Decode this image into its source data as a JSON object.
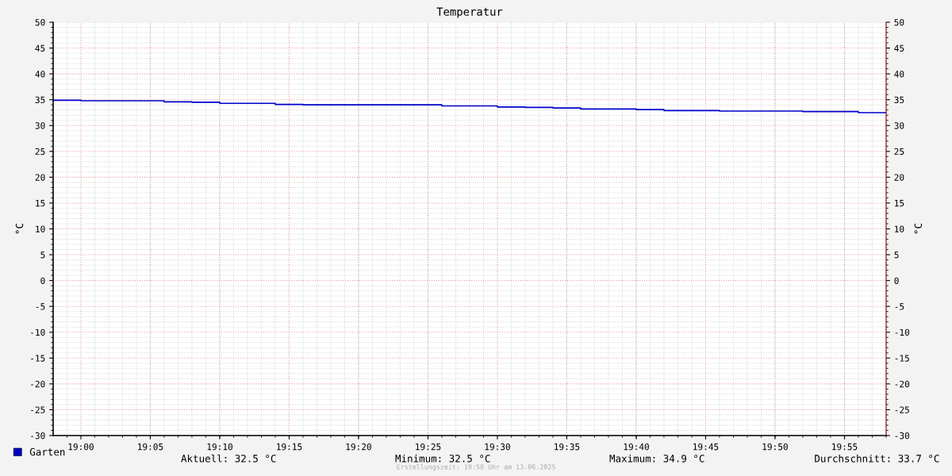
{
  "chart_data": {
    "type": "step",
    "title": "Temperatur",
    "ylabel": "°C",
    "y2label": "°C",
    "x": [
      18.9667,
      19.0,
      19.1,
      19.1333,
      19.1667,
      19.2333,
      19.2667,
      19.4333,
      19.5,
      19.5333,
      19.5667,
      19.6,
      19.6667,
      19.7,
      19.7667,
      19.8667,
      19.9333,
      19.9667
    ],
    "series": [
      {
        "name": "Garten",
        "color": "#0000cc",
        "values": [
          34.9,
          34.8,
          34.6,
          34.5,
          34.3,
          34.1,
          34.0,
          33.8,
          33.6,
          33.5,
          33.4,
          33.2,
          33.1,
          32.9,
          32.8,
          32.7,
          32.5,
          32.5
        ]
      }
    ],
    "xlim": [
      18.9667,
      19.9667
    ],
    "xticks": [
      {
        "value": 19.0,
        "label": "19:00"
      },
      {
        "value": 19.0833,
        "label": "19:05"
      },
      {
        "value": 19.1667,
        "label": "19:10"
      },
      {
        "value": 19.25,
        "label": "19:15"
      },
      {
        "value": 19.3333,
        "label": "19:20"
      },
      {
        "value": 19.4167,
        "label": "19:25"
      },
      {
        "value": 19.5,
        "label": "19:30"
      },
      {
        "value": 19.5833,
        "label": "19:35"
      },
      {
        "value": 19.6667,
        "label": "19:40"
      },
      {
        "value": 19.75,
        "label": "19:45"
      },
      {
        "value": 19.8333,
        "label": "19:50"
      },
      {
        "value": 19.9167,
        "label": "19:55"
      }
    ],
    "ylim": [
      -30,
      50
    ],
    "yticks": [
      -30,
      -25,
      -20,
      -15,
      -10,
      -5,
      0,
      5,
      10,
      15,
      20,
      25,
      30,
      35,
      40,
      45,
      50
    ],
    "y2lim": [
      -30,
      50
    ],
    "y2ticks": [
      -30,
      -25,
      -20,
      -15,
      -10,
      -5,
      0,
      5,
      10,
      15,
      20,
      25,
      30,
      35,
      40,
      45,
      50
    ],
    "grid": true,
    "legend": "bottom left",
    "annotations": [
      "Aktuell: 32.5 °C",
      "Minimum: 32.5 °C",
      "Maximum: 34.9 °C",
      "Durchschnitt: 33.7 °C",
      "Erstellungszeit: 19:58 Uhr am 13.06.2025"
    ]
  }
}
